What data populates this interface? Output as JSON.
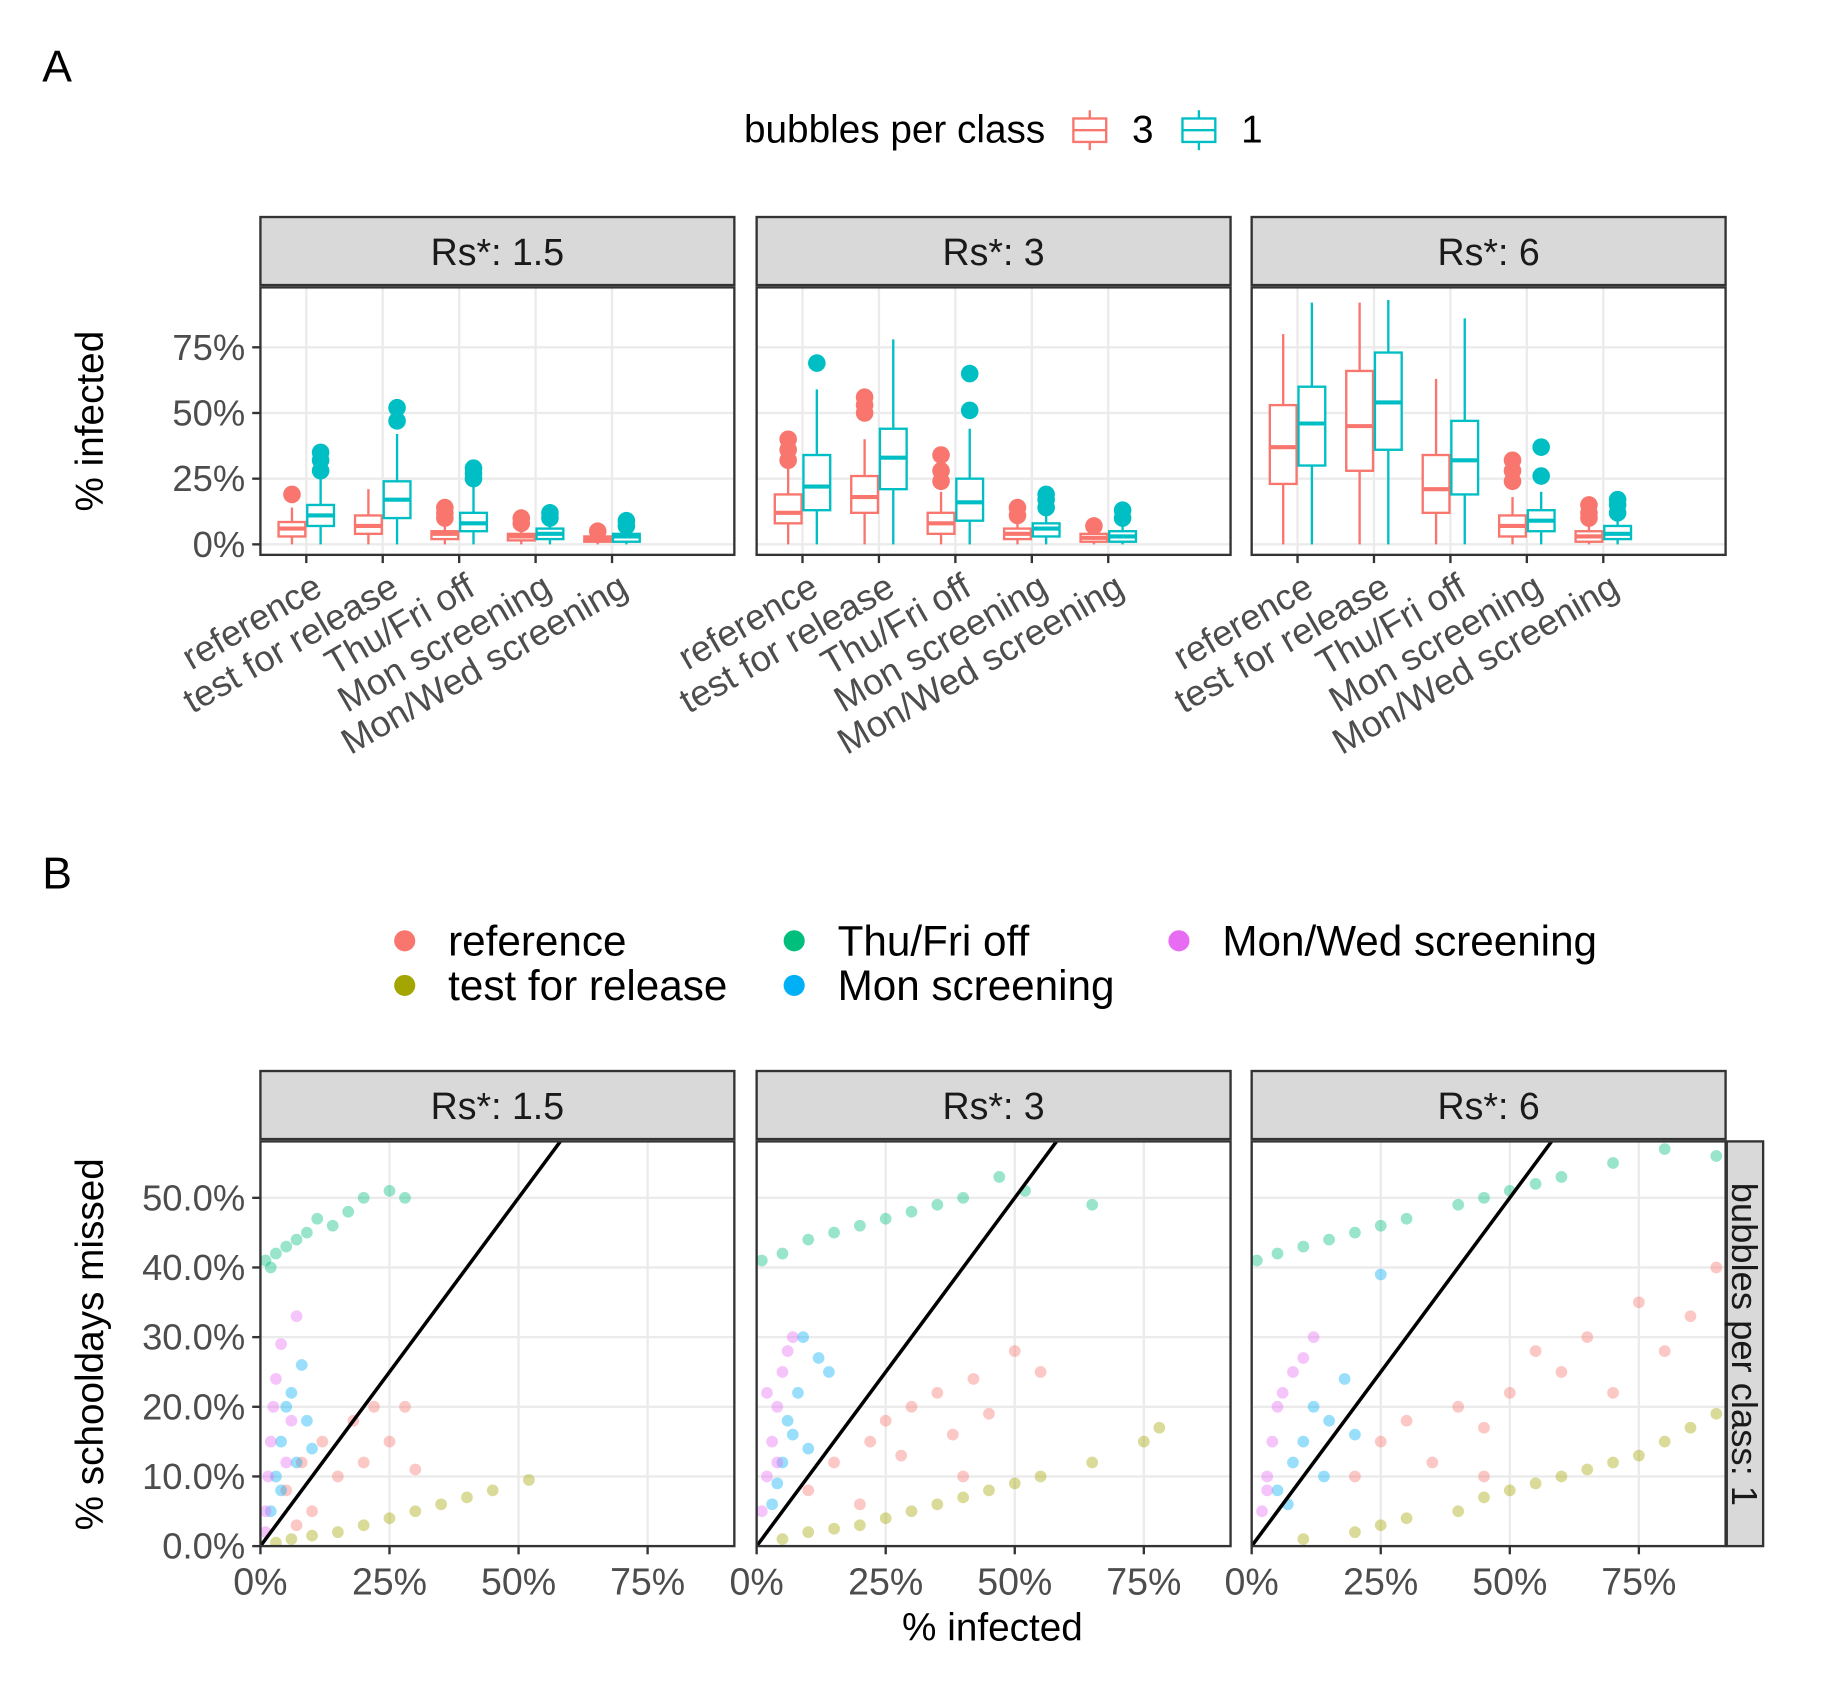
{
  "chart_data": [
    {
      "type": "box",
      "panel": "A",
      "legend_title": "bubbles per class",
      "facets": [
        "Rs*: 1.5",
        "Rs*: 3",
        "Rs*: 6"
      ],
      "categories": [
        "reference",
        "test for release",
        "Thu/Fri off",
        "Mon screening",
        "Mon/Wed screening"
      ],
      "y_label": "% infected",
      "ylim": [
        -4,
        97.8
      ],
      "yticks": [
        {
          "value": 0,
          "label": "0%"
        },
        {
          "value": 25,
          "label": "25%"
        },
        {
          "value": 50,
          "label": "50%"
        },
        {
          "value": 75,
          "label": "75%"
        }
      ],
      "grid": true,
      "series": [
        {
          "name": "3",
          "color": "#F8766D",
          "boxes": [
            [
              {
                "low": 0,
                "q1": 3,
                "median": 6,
                "q3": 8.5,
                "high": 14,
                "outliers": [
                  19
                ]
              },
              {
                "low": 0,
                "q1": 4,
                "median": 7,
                "q3": 11,
                "high": 21,
                "outliers": []
              },
              {
                "low": 0,
                "q1": 2,
                "median": 4,
                "q3": 5,
                "high": 8,
                "outliers": [
                  10,
                  12,
                  14
                ]
              },
              {
                "low": 0,
                "q1": 1.5,
                "median": 3,
                "q3": 4,
                "high": 6,
                "outliers": [
                  8,
                  10
                ]
              },
              {
                "low": 0,
                "q1": 1,
                "median": 2,
                "q3": 3,
                "high": 4,
                "outliers": [
                  5
                ]
              }
            ],
            [
              {
                "low": 0,
                "q1": 8,
                "median": 12,
                "q3": 19,
                "high": 29,
                "outliers": [
                  32,
                  36,
                  40
                ]
              },
              {
                "low": 0,
                "q1": 12,
                "median": 18,
                "q3": 26,
                "high": 40,
                "outliers": [
                  50,
                  53,
                  56
                ]
              },
              {
                "low": 0,
                "q1": 4,
                "median": 8,
                "q3": 12,
                "high": 20,
                "outliers": [
                  24,
                  28,
                  34
                ]
              },
              {
                "low": 0,
                "q1": 2,
                "median": 4,
                "q3": 6,
                "high": 9,
                "outliers": [
                  11,
                  14
                ]
              },
              {
                "low": 0,
                "q1": 1,
                "median": 2.5,
                "q3": 4,
                "high": 5,
                "outliers": [
                  7
                ]
              }
            ],
            [
              {
                "low": 0,
                "q1": 23,
                "median": 37,
                "q3": 53,
                "high": 80,
                "outliers": []
              },
              {
                "low": 0,
                "q1": 28,
                "median": 45,
                "q3": 66,
                "high": 92,
                "outliers": []
              },
              {
                "low": 0,
                "q1": 12,
                "median": 21,
                "q3": 34,
                "high": 63,
                "outliers": []
              },
              {
                "low": 0,
                "q1": 3,
                "median": 7,
                "q3": 11,
                "high": 18,
                "outliers": [
                  24,
                  28,
                  32
                ]
              },
              {
                "low": 0,
                "q1": 1,
                "median": 3,
                "q3": 5,
                "high": 8,
                "outliers": [
                  10,
                  12,
                  15
                ]
              }
            ]
          ]
        },
        {
          "name": "1",
          "color": "#00BFC4",
          "boxes": [
            [
              {
                "low": 0,
                "q1": 7,
                "median": 11,
                "q3": 15,
                "high": 25,
                "outliers": [
                  28,
                  32,
                  35
                ]
              },
              {
                "low": 0,
                "q1": 10,
                "median": 17,
                "q3": 24,
                "high": 42,
                "outliers": [
                  47,
                  52
                ]
              },
              {
                "low": 0,
                "q1": 5,
                "median": 8,
                "q3": 12,
                "high": 22,
                "outliers": [
                  25,
                  27,
                  29
                ]
              },
              {
                "low": 0,
                "q1": 2,
                "median": 4,
                "q3": 6,
                "high": 8,
                "outliers": [
                  10,
                  12
                ]
              },
              {
                "low": 0,
                "q1": 1,
                "median": 3,
                "q3": 4,
                "high": 5,
                "outliers": [
                  7,
                  9
                ]
              }
            ],
            [
              {
                "low": 0,
                "q1": 13,
                "median": 22,
                "q3": 34,
                "high": 59,
                "outliers": [
                  69
                ]
              },
              {
                "low": 0,
                "q1": 21,
                "median": 33,
                "q3": 44,
                "high": 78,
                "outliers": []
              },
              {
                "low": 0,
                "q1": 9,
                "median": 16,
                "q3": 25,
                "high": 44,
                "outliers": [
                  51,
                  65
                ]
              },
              {
                "low": 0,
                "q1": 3,
                "median": 6,
                "q3": 8,
                "high": 12,
                "outliers": [
                  14,
                  17,
                  19
                ]
              },
              {
                "low": 0,
                "q1": 1,
                "median": 3,
                "q3": 5,
                "high": 7,
                "outliers": [
                  10,
                  13
                ]
              }
            ],
            [
              {
                "low": 0,
                "q1": 30,
                "median": 46,
                "q3": 60,
                "high": 92,
                "outliers": []
              },
              {
                "low": 0,
                "q1": 36,
                "median": 54,
                "q3": 73,
                "high": 93,
                "outliers": []
              },
              {
                "low": 0,
                "q1": 19,
                "median": 32,
                "q3": 47,
                "high": 86,
                "outliers": []
              },
              {
                "low": 0,
                "q1": 5,
                "median": 9,
                "q3": 13,
                "high": 20,
                "outliers": [
                  26,
                  37
                ]
              },
              {
                "low": 0,
                "q1": 2,
                "median": 4,
                "q3": 7,
                "high": 10,
                "outliers": [
                  12,
                  15,
                  17
                ]
              }
            ]
          ]
        }
      ]
    },
    {
      "type": "scatter",
      "panel": "B",
      "facets": [
        "Rs*: 1.5",
        "Rs*: 3",
        "Rs*: 6"
      ],
      "strip_right": "bubbles per class: 1",
      "x_label": "% infected",
      "y_label": "% schooldays missed",
      "xlim": [
        0,
        91.8
      ],
      "ylim": [
        0,
        58.1
      ],
      "xticks": [
        {
          "value": 0,
          "label": "0%"
        },
        {
          "value": 25,
          "label": "25%"
        },
        {
          "value": 50,
          "label": "50%"
        },
        {
          "value": 75,
          "label": "75%"
        }
      ],
      "yticks": [
        {
          "value": 0,
          "label": "0.0%"
        },
        {
          "value": 10,
          "label": "10.0%"
        },
        {
          "value": 20,
          "label": "20.0%"
        },
        {
          "value": 30,
          "label": "30.0%"
        },
        {
          "value": 40,
          "label": "40.0%"
        },
        {
          "value": 50,
          "label": "50.0%"
        }
      ],
      "grid": true,
      "abline": {
        "intercept": 0,
        "slope": 1
      },
      "series": [
        {
          "name": "reference",
          "color": "#F8766D",
          "facets": [
            {
              "x": [
                5,
                8,
                10,
                12,
                15,
                18,
                20,
                22,
                25,
                28,
                7,
                30
              ],
              "y": [
                8,
                12,
                5,
                15,
                10,
                18,
                12,
                20,
                15,
                20,
                3,
                11
              ]
            },
            {
              "x": [
                10,
                15,
                20,
                22,
                25,
                28,
                30,
                35,
                38,
                42,
                45,
                50,
                55,
                40
              ],
              "y": [
                8,
                12,
                6,
                15,
                18,
                13,
                20,
                22,
                16,
                24,
                19,
                28,
                25,
                10
              ]
            },
            {
              "x": [
                20,
                25,
                30,
                35,
                40,
                45,
                50,
                55,
                60,
                65,
                70,
                75,
                80,
                85,
                90,
                45
              ],
              "y": [
                10,
                15,
                18,
                12,
                20,
                17,
                22,
                28,
                25,
                30,
                22,
                35,
                28,
                33,
                40,
                10
              ]
            }
          ]
        },
        {
          "name": "test for release",
          "color": "#A3A500",
          "facets": [
            {
              "x": [
                3,
                6,
                10,
                15,
                20,
                25,
                30,
                35,
                40,
                45,
                52
              ],
              "y": [
                0.5,
                1,
                1.5,
                2,
                3,
                4,
                5,
                6,
                7,
                8,
                9.5
              ]
            },
            {
              "x": [
                5,
                10,
                15,
                20,
                25,
                30,
                35,
                40,
                45,
                50,
                55,
                65,
                75,
                78
              ],
              "y": [
                1,
                2,
                2.5,
                3,
                4,
                5,
                6,
                7,
                8,
                9,
                10,
                12,
                15,
                17
              ]
            },
            {
              "x": [
                10,
                20,
                25,
                30,
                40,
                45,
                50,
                55,
                60,
                65,
                70,
                75,
                80,
                85,
                90
              ],
              "y": [
                1,
                2,
                3,
                4,
                5,
                7,
                8,
                9,
                10,
                11,
                12,
                13,
                15,
                17,
                19
              ]
            }
          ]
        },
        {
          "name": "Thu/Fri off",
          "color": "#00BF7D",
          "facets": [
            {
              "x": [
                1,
                3,
                5,
                7,
                9,
                11,
                14,
                17,
                20,
                25,
                28,
                2
              ],
              "y": [
                41,
                42,
                43,
                44,
                45,
                47,
                46,
                48,
                50,
                51,
                50,
                40
              ]
            },
            {
              "x": [
                1,
                5,
                10,
                15,
                20,
                25,
                30,
                35,
                40,
                47,
                52,
                65
              ],
              "y": [
                41,
                42,
                44,
                45,
                46,
                47,
                48,
                49,
                50,
                53,
                51,
                49
              ]
            },
            {
              "x": [
                1,
                5,
                10,
                15,
                20,
                25,
                30,
                40,
                45,
                50,
                55,
                60,
                70,
                80,
                90
              ],
              "y": [
                41,
                42,
                43,
                44,
                45,
                46,
                47,
                49,
                50,
                51,
                52,
                53,
                55,
                57,
                56
              ]
            }
          ]
        },
        {
          "name": "Mon screening",
          "color": "#00B0F6",
          "facets": [
            {
              "x": [
                2,
                3,
                4,
                5,
                6,
                7,
                8,
                9,
                10,
                4
              ],
              "y": [
                5,
                10,
                15,
                20,
                22,
                12,
                26,
                18,
                14,
                8
              ]
            },
            {
              "x": [
                3,
                5,
                6,
                8,
                10,
                12,
                14,
                4,
                9,
                7
              ],
              "y": [
                6,
                12,
                18,
                22,
                14,
                27,
                25,
                9,
                30,
                16
              ]
            },
            {
              "x": [
                5,
                8,
                10,
                12,
                15,
                18,
                20,
                25,
                7,
                14
              ],
              "y": [
                8,
                12,
                15,
                20,
                18,
                24,
                16,
                39,
                6,
                10
              ]
            }
          ]
        },
        {
          "name": "Mon/Wed screening",
          "color": "#E76BF3",
          "facets": [
            {
              "x": [
                1,
                1.5,
                2,
                2.5,
                3,
                4,
                5,
                6,
                7,
                1
              ],
              "y": [
                5,
                10,
                15,
                20,
                24,
                29,
                12,
                18,
                33,
                2
              ]
            },
            {
              "x": [
                1,
                2,
                3,
                4,
                5,
                6,
                7,
                2,
                4
              ],
              "y": [
                5,
                10,
                15,
                20,
                25,
                28,
                30,
                22,
                12
              ]
            },
            {
              "x": [
                2,
                3,
                4,
                5,
                6,
                8,
                10,
                12,
                3
              ],
              "y": [
                5,
                10,
                15,
                20,
                22,
                25,
                27,
                30,
                8
              ]
            }
          ]
        }
      ]
    }
  ]
}
